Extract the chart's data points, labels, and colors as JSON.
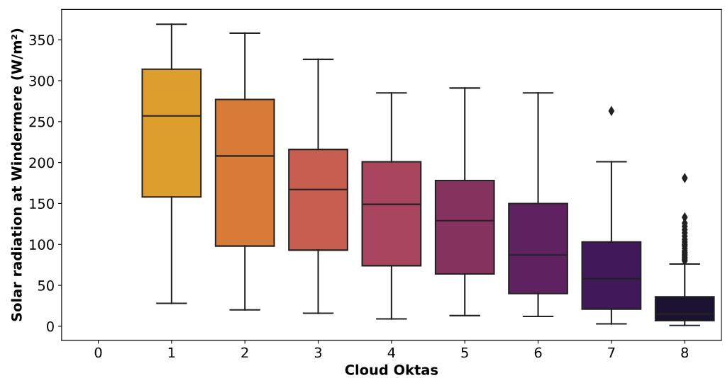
{
  "chart_data": {
    "type": "box",
    "xlabel": "Cloud Oktas",
    "ylabel": "Solar radiation at Windermere (W/m²)",
    "categories": [
      "0",
      "1",
      "2",
      "3",
      "4",
      "5",
      "6",
      "7",
      "8"
    ],
    "colors": [
      null,
      "#dd9e2b",
      "#d77b36",
      "#c85e4f",
      "#a9465e",
      "#86325f",
      "#5f2160",
      "#41195a",
      "#1b1233"
    ],
    "boxes": [
      null,
      {
        "low": 28,
        "q1": 158,
        "median": 257,
        "q3": 314,
        "high": 369
      },
      {
        "low": 20,
        "q1": 98,
        "median": 208,
        "q3": 277,
        "high": 358
      },
      {
        "low": 16,
        "q1": 93,
        "median": 167,
        "q3": 216,
        "high": 326
      },
      {
        "low": 9,
        "q1": 74,
        "median": 149,
        "q3": 201,
        "high": 285
      },
      {
        "low": 13,
        "q1": 64,
        "median": 129,
        "q3": 178,
        "high": 291
      },
      {
        "low": 12,
        "q1": 40,
        "median": 87,
        "q3": 150,
        "high": 285
      },
      {
        "low": 3,
        "q1": 21,
        "median": 58,
        "q3": 103,
        "high": 201,
        "outliers": [
          263
        ]
      },
      {
        "low": 1,
        "q1": 7,
        "median": 15,
        "q3": 36,
        "high": 76,
        "outliers": [
          80,
          82,
          84,
          86,
          88,
          90,
          92,
          95,
          98,
          100,
          103,
          106,
          110,
          114,
          118,
          122,
          126,
          133,
          181
        ]
      }
    ],
    "marker": "diamond",
    "ylim": [
      -17,
      387
    ],
    "yticks": [
      0,
      50,
      100,
      150,
      200,
      250,
      300,
      350
    ],
    "grid": false,
    "legend": false
  }
}
